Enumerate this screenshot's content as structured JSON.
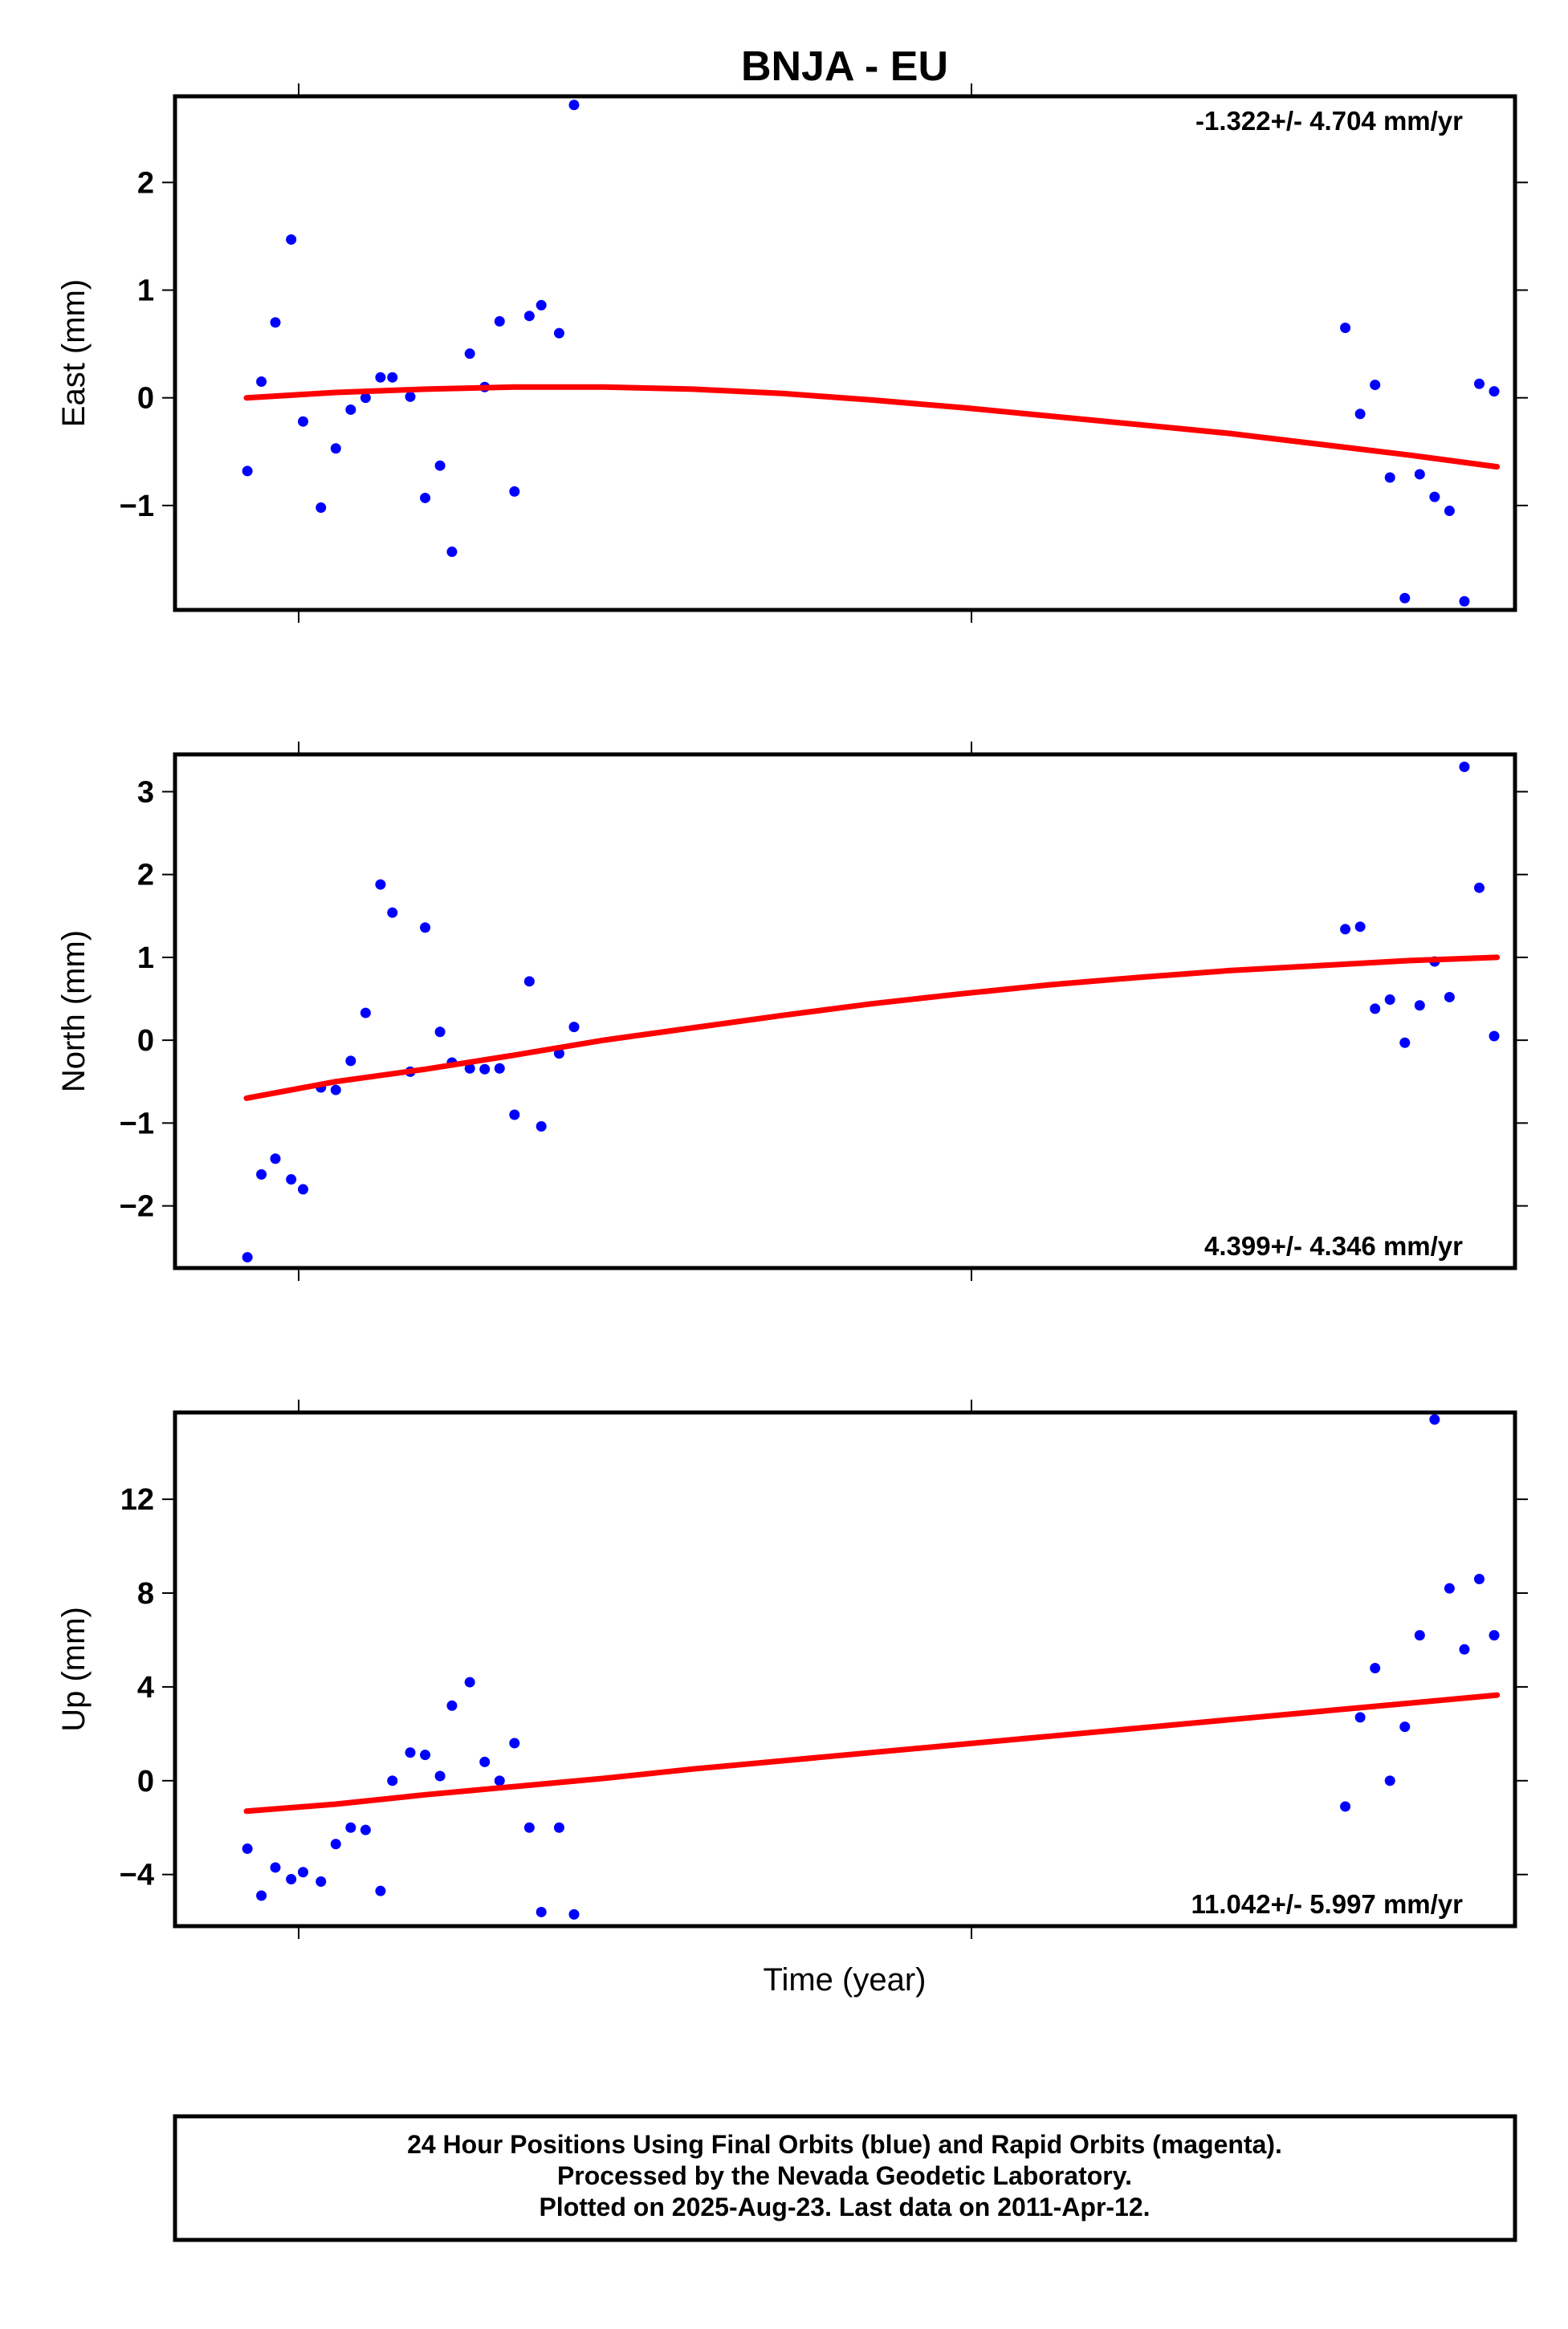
{
  "chart": {
    "title": "BNJA - EU",
    "xlabel": "Time (year)",
    "footer": [
      "24 Hour Positions Using Final Orbits (blue) and Rapid Orbits (magenta).",
      "Processed by the Nevada Geodetic Laboratory.",
      "Plotted on 2025-Aug-23. Last data on 2011-Apr-12."
    ]
  },
  "colors": {
    "points": "#0000ff",
    "fit": "#ff0000",
    "frame": "#000000"
  },
  "chart_data": [
    {
      "type": "scatter",
      "ylabel": "East (mm)",
      "rate_label": "-1.322+/- 4.704 mm/yr",
      "ylim": [
        -1.97,
        2.8
      ],
      "yticks": [
        -1,
        0,
        1,
        2
      ],
      "ytick_labels": [
        "−1",
        "0",
        "1",
        "2"
      ],
      "x": [
        0.03,
        0.5,
        0.97,
        1.5,
        1.9,
        2.5,
        3.0,
        3.5,
        4.0,
        4.5,
        4.9,
        5.5,
        6.0,
        6.5,
        6.9,
        7.5,
        8.0,
        8.5,
        9.0,
        9.5,
        9.9,
        10.5,
        11.0,
        36.9,
        37.4,
        37.9,
        38.4,
        38.9,
        39.4,
        39.9,
        40.4,
        40.9,
        41.4,
        41.9
      ],
      "y": [
        -0.68,
        0.15,
        0.7,
        1.47,
        -0.22,
        -1.02,
        -0.47,
        -0.11,
        0.0,
        0.19,
        0.19,
        0.01,
        -0.93,
        -0.63,
        -1.43,
        0.41,
        0.1,
        0.71,
        -0.87,
        0.76,
        0.86,
        0.6,
        2.72,
        0.65,
        -0.15,
        0.12,
        -0.74,
        -1.86,
        -0.71,
        -0.92,
        -1.05,
        -1.89,
        0.13,
        0.06
      ],
      "fit": {
        "x": [
          0,
          3,
          6,
          9,
          12,
          15,
          18,
          21,
          24,
          27,
          30,
          33,
          36,
          39,
          42
        ],
        "y": [
          0.0,
          0.05,
          0.08,
          0.1,
          0.1,
          0.08,
          0.04,
          -0.02,
          -0.09,
          -0.17,
          -0.25,
          -0.33,
          -0.43,
          -0.53,
          -0.64
        ]
      }
    },
    {
      "type": "scatter",
      "ylabel": "North (mm)",
      "rate_label": "4.399+/- 4.346 mm/yr",
      "ylim": [
        -2.75,
        3.45
      ],
      "yticks": [
        -2,
        -1,
        0,
        1,
        2,
        3
      ],
      "ytick_labels": [
        "−2",
        "−1",
        "0",
        "1",
        "2",
        "3"
      ],
      "x": [
        0.03,
        0.5,
        0.97,
        1.5,
        1.9,
        2.5,
        3.0,
        3.5,
        4.0,
        4.5,
        4.9,
        5.5,
        6.0,
        6.5,
        6.9,
        7.5,
        8.0,
        8.5,
        9.0,
        9.5,
        9.9,
        10.5,
        11.0,
        36.9,
        37.4,
        37.9,
        38.4,
        38.9,
        39.4,
        39.9,
        40.4,
        40.9,
        41.4,
        41.9
      ],
      "y": [
        -2.62,
        -1.62,
        -1.43,
        -1.68,
        -1.8,
        -0.57,
        -0.6,
        -0.25,
        0.33,
        1.88,
        1.54,
        -0.38,
        1.36,
        0.1,
        -0.27,
        -0.34,
        -0.35,
        -0.34,
        -0.9,
        0.71,
        -1.04,
        -0.16,
        0.16,
        1.34,
        1.37,
        0.38,
        0.49,
        -0.03,
        0.42,
        0.95,
        0.52,
        3.3,
        1.84,
        0.05
      ],
      "fit": {
        "x": [
          0,
          3,
          6,
          9,
          12,
          15,
          18,
          21,
          24,
          27,
          30,
          33,
          36,
          39,
          42
        ],
        "y": [
          -0.7,
          -0.5,
          -0.35,
          -0.18,
          0.0,
          0.15,
          0.3,
          0.44,
          0.56,
          0.67,
          0.76,
          0.84,
          0.9,
          0.96,
          1.0
        ]
      }
    },
    {
      "type": "scatter",
      "ylabel": "Up (mm)",
      "rate_label": "11.042+/- 5.997 mm/yr",
      "ylim": [
        -6.2,
        15.7
      ],
      "yticks": [
        -4,
        0,
        4,
        8,
        12
      ],
      "ytick_labels": [
        "−4",
        "0",
        "4",
        "8",
        "12"
      ],
      "x": [
        0.03,
        0.5,
        0.97,
        1.5,
        1.9,
        2.5,
        3.0,
        3.5,
        4.0,
        4.5,
        4.9,
        5.5,
        6.0,
        6.5,
        6.9,
        7.5,
        8.0,
        8.5,
        9.0,
        9.5,
        9.9,
        10.5,
        11.0,
        36.9,
        37.4,
        37.9,
        38.4,
        38.9,
        39.4,
        39.9,
        40.4,
        40.9,
        41.4,
        41.9
      ],
      "y": [
        -2.9,
        -4.9,
        -3.7,
        -4.2,
        -3.9,
        -4.3,
        -2.7,
        -2.0,
        -2.1,
        -4.7,
        0.0,
        1.2,
        1.1,
        0.2,
        3.2,
        4.2,
        0.8,
        0.0,
        1.6,
        -2.0,
        -5.6,
        -2.0,
        -5.7,
        -1.1,
        2.7,
        4.8,
        0.0,
        2.3,
        6.2,
        15.4,
        8.2,
        5.6,
        8.6,
        6.2
      ],
      "fit": {
        "x": [
          0,
          3,
          6,
          9,
          12,
          15,
          18,
          21,
          24,
          27,
          30,
          33,
          36,
          39,
          42
        ],
        "y": [
          -1.3,
          -1.0,
          -0.6,
          -0.25,
          0.1,
          0.5,
          0.85,
          1.2,
          1.55,
          1.9,
          2.25,
          2.6,
          2.95,
          3.3,
          3.65
        ]
      }
    }
  ]
}
